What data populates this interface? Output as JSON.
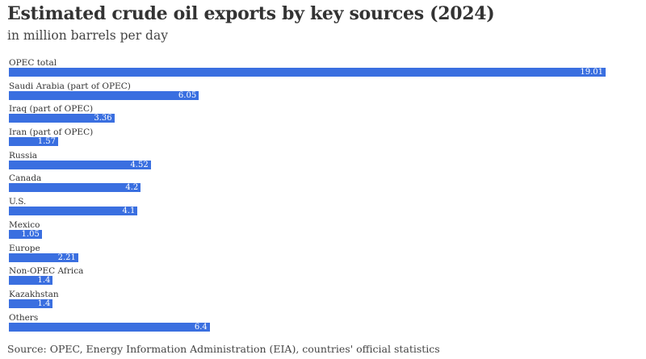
{
  "header": {
    "title": "Estimated crude oil exports by key sources (2024)",
    "subtitle": "in million barrels per day"
  },
  "footer": {
    "source": "Source: OPEC, Energy Information Administration (EIA), countries' official statistics"
  },
  "colors": {
    "bar": "#3a6fe0",
    "value_text": "#ffffff"
  },
  "chart_data": {
    "type": "bar",
    "orientation": "horizontal",
    "title": "Estimated crude oil exports by key sources (2024)",
    "subtitle": "in million barrels per day",
    "xlabel": "",
    "ylabel": "",
    "grid": false,
    "legend": null,
    "xlim": [
      0,
      19.01
    ],
    "categories": [
      "OPEC total",
      "Saudi Arabia (part of OPEC)",
      "Iraq (part of OPEC)",
      "Iran (part of OPEC)",
      "Russia",
      "Canada",
      "U.S.",
      "Mexico",
      "Europe",
      "Non-OPEC Africa",
      "Kazakhstan",
      "Others"
    ],
    "values": [
      19.01,
      6.05,
      3.36,
      1.57,
      4.52,
      4.2,
      4.1,
      1.05,
      2.21,
      1.4,
      1.4,
      6.4
    ],
    "value_labels": [
      "19.01",
      "6.05",
      "3.36",
      "1.57",
      "4.52",
      "4.2",
      "4.1",
      "1.05",
      "2.21",
      "1.4",
      "1.4",
      "6.4"
    ],
    "source": "Source: OPEC, Energy Information Administration (EIA), countries' official statistics"
  }
}
